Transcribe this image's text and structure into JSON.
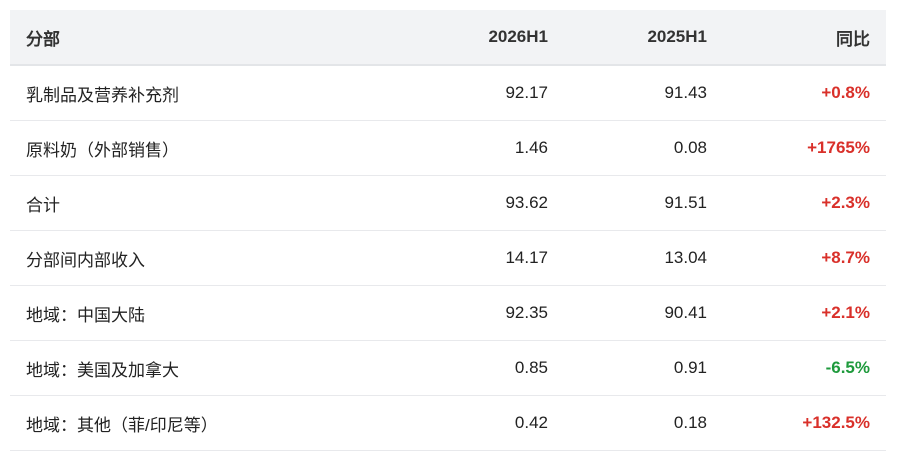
{
  "table": {
    "header": [
      "分部",
      "2026H1",
      "2025H1",
      "同比"
    ],
    "rows": [
      [
        "乳制品及营养补充剂",
        "92.17",
        "91.43",
        "+0.8%"
      ],
      [
        "原料奶（外部销售）",
        "1.46",
        "0.08",
        "+1765%"
      ],
      [
        "合计",
        "93.62",
        "91.51",
        "+2.3%"
      ],
      [
        "分部间内部收入",
        "14.17",
        "13.04",
        "+8.7%"
      ],
      [
        "地域：中国大陆",
        "92.35",
        "90.41",
        "+2.1%"
      ],
      [
        "地域：美国及加拿大",
        "0.85",
        "0.91",
        "-6.5%"
      ],
      [
        "地域：其他（菲/印尼等）",
        "0.42",
        "0.18",
        "+132.5%"
      ]
    ]
  }
}
